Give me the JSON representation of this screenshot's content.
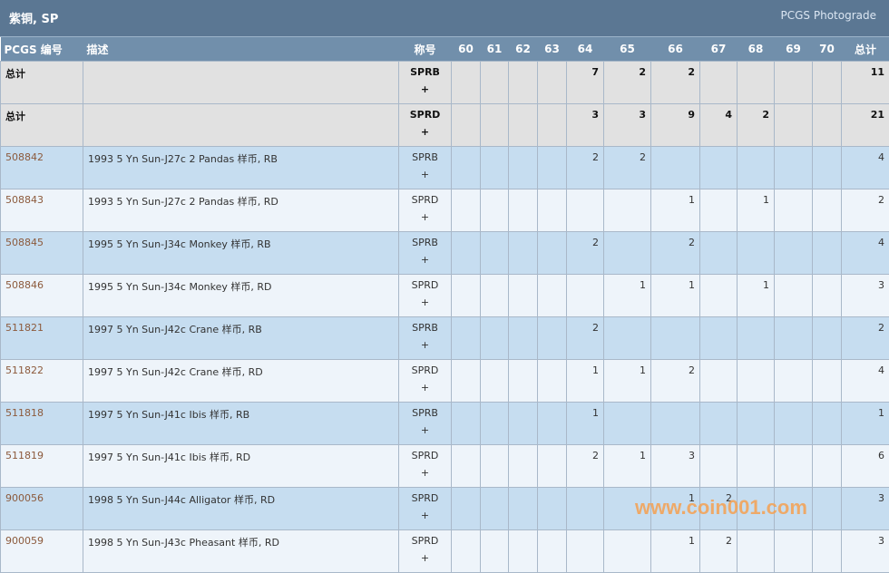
{
  "header": {
    "title": "紫铜, SP",
    "brand": "PCGS Photograde"
  },
  "columns": [
    "PCGS 编号",
    "描述",
    "称号",
    "60",
    "61",
    "62",
    "63",
    "64",
    "65",
    "66",
    "67",
    "68",
    "69",
    "70",
    "总计"
  ],
  "totals": [
    {
      "label": "总计",
      "designation": "SPRB +",
      "grades": [
        "",
        "",
        "",
        "",
        "7",
        "2",
        "2",
        "",
        "",
        "",
        ""
      ],
      "total": "11"
    },
    {
      "label": "总计",
      "designation": "SPRD +",
      "grades": [
        "",
        "",
        "",
        "",
        "3",
        "3",
        "9",
        "4",
        "2",
        "",
        ""
      ],
      "total": "21"
    }
  ],
  "rows": [
    {
      "id": "508842",
      "desc": "1993 5 Yn Sun-J27c 2 Pandas 样币, RB",
      "designation": "SPRB +",
      "grades": [
        "",
        "",
        "",
        "",
        "2",
        "2",
        "",
        "",
        "",
        "",
        ""
      ],
      "total": "4"
    },
    {
      "id": "508843",
      "desc": "1993 5 Yn Sun-J27c 2 Pandas 样币, RD",
      "designation": "SPRD +",
      "grades": [
        "",
        "",
        "",
        "",
        "",
        "",
        "1",
        "",
        "1",
        "",
        ""
      ],
      "total": "2"
    },
    {
      "id": "508845",
      "desc": "1995 5 Yn Sun-J34c Monkey 样币, RB",
      "designation": "SPRB +",
      "grades": [
        "",
        "",
        "",
        "",
        "2",
        "",
        "2",
        "",
        "",
        "",
        ""
      ],
      "total": "4"
    },
    {
      "id": "508846",
      "desc": "1995 5 Yn Sun-J34c Monkey 样币, RD",
      "designation": "SPRD +",
      "grades": [
        "",
        "",
        "",
        "",
        "",
        "1",
        "1",
        "",
        "1",
        "",
        ""
      ],
      "total": "3"
    },
    {
      "id": "511821",
      "desc": "1997 5 Yn Sun-J42c Crane 样币, RB",
      "designation": "SPRB +",
      "grades": [
        "",
        "",
        "",
        "",
        "2",
        "",
        "",
        "",
        "",
        "",
        ""
      ],
      "total": "2"
    },
    {
      "id": "511822",
      "desc": "1997 5 Yn Sun-J42c Crane 样币, RD",
      "designation": "SPRD +",
      "grades": [
        "",
        "",
        "",
        "",
        "1",
        "1",
        "2",
        "",
        "",
        "",
        ""
      ],
      "total": "4"
    },
    {
      "id": "511818",
      "desc": "1997 5 Yn Sun-J41c Ibis 样币, RB",
      "designation": "SPRB +",
      "grades": [
        "",
        "",
        "",
        "",
        "1",
        "",
        "",
        "",
        "",
        "",
        ""
      ],
      "total": "1"
    },
    {
      "id": "511819",
      "desc": "1997 5 Yn Sun-J41c Ibis 样币, RD",
      "designation": "SPRD +",
      "grades": [
        "",
        "",
        "",
        "",
        "2",
        "1",
        "3",
        "",
        "",
        "",
        ""
      ],
      "total": "6"
    },
    {
      "id": "900056",
      "desc": "1998 5 Yn Sun-J44c Alligator 样币, RD",
      "designation": "SPRD +",
      "grades": [
        "",
        "",
        "",
        "",
        "",
        "",
        "1",
        "2",
        "",
        "",
        ""
      ],
      "total": "3"
    },
    {
      "id": "900059",
      "desc": "1998 5 Yn Sun-J43c Pheasant 样币, RD",
      "designation": "SPRD +",
      "grades": [
        "",
        "",
        "",
        "",
        "",
        "",
        "1",
        "2",
        "",
        "",
        ""
      ],
      "total": "3"
    }
  ],
  "watermark": "www.coin001.com"
}
